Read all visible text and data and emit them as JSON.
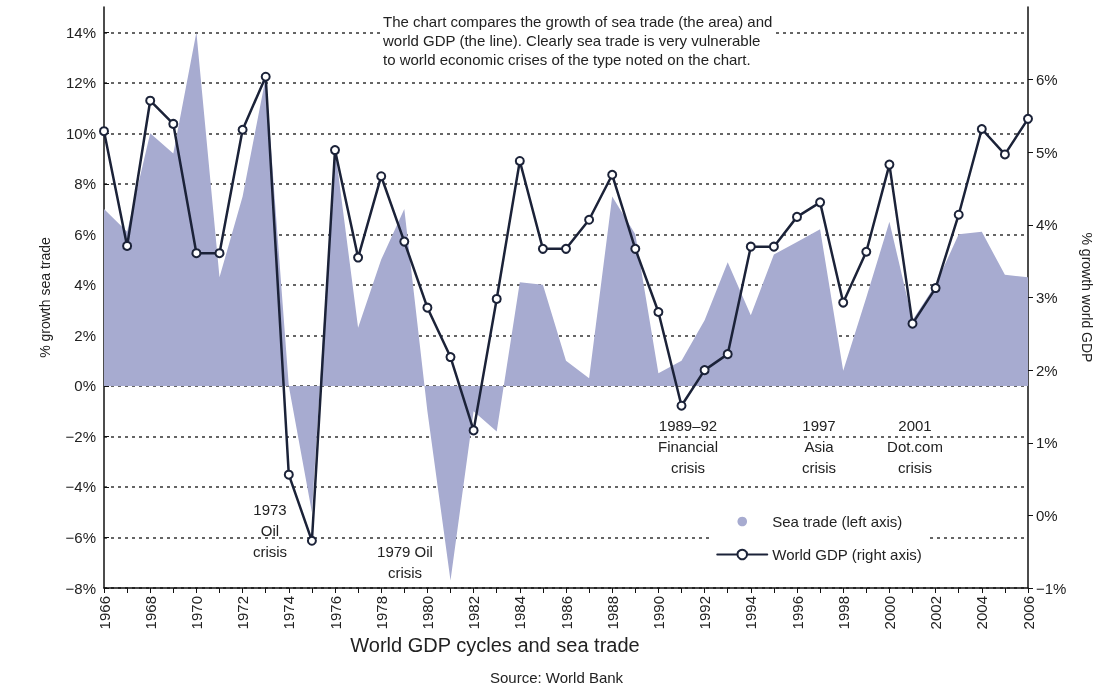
{
  "chart_data": {
    "type": "area",
    "title": "World GDP cycles and sea trade",
    "ylabel": "% growth sea trade",
    "y2label": "% growth world GDP",
    "x": [
      1966,
      1967,
      1968,
      1969,
      1970,
      1971,
      1972,
      1973,
      1974,
      1975,
      1976,
      1977,
      1978,
      1979,
      1980,
      1981,
      1982,
      1983,
      1984,
      1985,
      1986,
      1987,
      1988,
      1989,
      1990,
      1991,
      1992,
      1993,
      1994,
      1995,
      1996,
      1997,
      1998,
      1999,
      2000,
      2001,
      2002,
      2003,
      2004,
      2005,
      2006
    ],
    "xlim": [
      1966,
      2006
    ],
    "xticks": [
      1966,
      {
        "value": 1967,
        "label": null
      },
      1968,
      {
        "value": 1969,
        "label": null
      },
      1970,
      {
        "value": 1971,
        "label": null
      },
      1972,
      {
        "value": 1973,
        "label": null
      },
      1974,
      {
        "value": 1975,
        "label": null
      },
      1976,
      {
        "value": 1977,
        "label": null
      },
      1978,
      {
        "value": 1979,
        "label": null
      },
      1980,
      {
        "value": 1981,
        "label": null
      },
      1982,
      {
        "value": 1983,
        "label": null
      },
      1984,
      {
        "value": 1985,
        "label": null
      },
      1986,
      {
        "value": 1987,
        "label": null
      },
      1988,
      {
        "value": 1989,
        "label": null
      },
      1990,
      {
        "value": 1991,
        "label": null
      },
      1992,
      {
        "value": 1993,
        "label": null
      },
      1994,
      {
        "value": 1995,
        "label": null
      },
      1996,
      {
        "value": 1997,
        "label": null
      },
      1998,
      {
        "value": 1999,
        "label": null
      },
      2000,
      {
        "value": 2001,
        "label": null
      },
      2002,
      {
        "value": 2003,
        "label": null
      },
      2004,
      {
        "value": 2005,
        "label": null
      },
      2006
    ],
    "ylim": [
      -8,
      15
    ],
    "yticks": [
      {
        "value": -8,
        "label": "−8%"
      },
      {
        "value": -6,
        "label": "−6%"
      },
      {
        "value": -4,
        "label": "−4%"
      },
      {
        "value": -2,
        "label": "−2%"
      },
      {
        "value": 0,
        "label": "0%"
      },
      {
        "value": 2,
        "label": "2%"
      },
      {
        "value": 4,
        "label": "4%"
      },
      {
        "value": 6,
        "label": "6%"
      },
      {
        "value": 8,
        "label": "8%"
      },
      {
        "value": 10,
        "label": "10%"
      },
      {
        "value": 12,
        "label": "12%"
      },
      {
        "value": 14,
        "label": "14%"
      }
    ],
    "y2lim": [
      -1,
      7
    ],
    "y2ticks": [
      {
        "value": -1,
        "label": "−1%"
      },
      {
        "value": 0,
        "label": "0%"
      },
      {
        "value": 1,
        "label": "1%"
      },
      {
        "value": 2,
        "label": "2%"
      },
      {
        "value": 3,
        "label": "3%"
      },
      {
        "value": 4,
        "label": "4%"
      },
      {
        "value": 5,
        "label": "5%"
      },
      {
        "value": 6,
        "label": "6%"
      }
    ],
    "series": [
      {
        "name": "Sea trade (left axis)",
        "color": "#a7abd0",
        "values": [
          7.0,
          6.1,
          10.0,
          9.2,
          14.0,
          4.3,
          7.5,
          12.2,
          0,
          -5.0,
          9.4,
          2.3,
          5.0,
          7.0,
          -1.0,
          -7.7,
          -1.0,
          -1.8,
          4.1,
          4.0,
          1.0,
          0.3,
          7.5,
          6.0,
          0.5,
          1.0,
          2.6,
          4.9,
          2.8,
          5.2,
          5.7,
          6.2,
          0.6,
          3.5,
          6.5,
          2.6,
          4.0,
          6.0,
          6.1,
          4.4,
          4.3
        ]
      },
      {
        "name": "World GDP (right axis)",
        "type": "line",
        "marker": "circle",
        "axis": "y2",
        "color": "#1b2238",
        "values": [
          5.29,
          3.71,
          5.71,
          5.39,
          3.61,
          3.61,
          5.31,
          6.04,
          0.56,
          -0.35,
          5.03,
          3.55,
          4.67,
          3.77,
          2.86,
          2.18,
          1.17,
          2.98,
          4.88,
          3.67,
          3.67,
          4.07,
          4.69,
          3.67,
          2.8,
          1.51,
          2.0,
          2.22,
          3.7,
          3.7,
          4.11,
          4.31,
          2.93,
          3.63,
          4.83,
          2.64,
          3.13,
          4.14,
          5.32,
          4.97,
          5.46
        ]
      }
    ],
    "grid": "y",
    "legend": "bottom right",
    "annotations": [
      "The chart compares the growth of sea trade (the area) and\nworld GDP (the line). Clearly sea trade is very vulnerable\nto world economic crises of the type noted on the chart.",
      "Source: World Bank",
      "1973\nOil\ncrisis",
      "1979 Oil\ncrisis",
      "1989–92\nFinancial\ncrisis",
      "1997\nAsia\ncrisis",
      "2001\nDot.com\ncrisis"
    ]
  }
}
